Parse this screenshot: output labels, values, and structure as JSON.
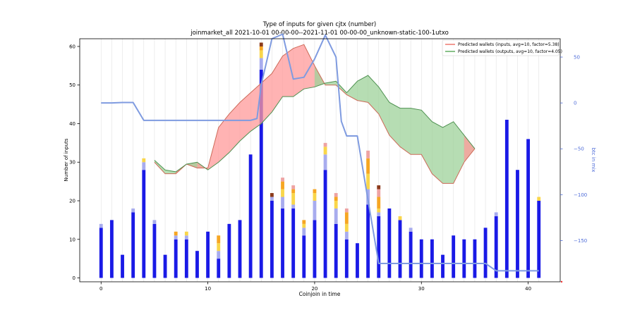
{
  "chart_data": {
    "type": "bar",
    "title": "Type of inputs for given cjtx (number)",
    "subtitle": "joinmarket_all 2021-10-01 00-00-00--2021-11-01 00-00-00_unknown-static-100-1utxo",
    "xlabel": "Coinjoin in time",
    "ylabel": "Number of inputs",
    "y2label": "btc in mix",
    "xlim": [
      -2,
      43
    ],
    "ylim": [
      -1,
      62
    ],
    "y2lim": [
      -195,
      70
    ],
    "x_ticks": [
      0,
      10,
      20,
      30,
      40
    ],
    "y_ticks": [
      0,
      10,
      20,
      30,
      40,
      50,
      60
    ],
    "y2_ticks": [
      50,
      0,
      -50,
      -100,
      -150
    ],
    "y2_tick_labels": [
      "50",
      "0",
      "−50",
      "−100",
      "−150"
    ],
    "grid": "vertical",
    "legend_position": "top-right",
    "legend": [
      {
        "label": "Predicted wallets (inputs, avg=10, factor=5.38)",
        "color": "#e8574b"
      },
      {
        "label": "Predicted wallets (outputs, avg=10, factor=4.05)",
        "color": "#3a9a3a"
      }
    ],
    "colors": {
      "base": "#1a1ae6",
      "lavender": "#a8acee",
      "yellow": "#f9d64a",
      "orange": "#f6a623",
      "pink": "#eea3a3",
      "brown": "#8b3a1a",
      "btc_line": "#7f9be0",
      "inputs_fill": "#ff9a9a",
      "outputs_fill": "#9ed29a",
      "inputs_line": "#cd6a58",
      "outputs_line": "#4e9150",
      "y2_axis": "#4d6bd8"
    },
    "stacks": [
      [
        0,
        [
          13,
          1,
          0,
          0,
          0,
          0
        ]
      ],
      [
        1,
        [
          15,
          0,
          0,
          0,
          0,
          0
        ]
      ],
      [
        2,
        [
          6,
          0,
          0,
          0,
          0,
          0
        ]
      ],
      [
        3,
        [
          17,
          1,
          0,
          0,
          0,
          0
        ]
      ],
      [
        4,
        [
          28,
          2,
          1,
          0,
          0,
          0
        ]
      ],
      [
        5,
        [
          14,
          1,
          0,
          0,
          0,
          0
        ]
      ],
      [
        6,
        [
          6,
          0,
          0,
          0,
          0,
          0
        ]
      ],
      [
        7,
        [
          10,
          1,
          0,
          1,
          0,
          0
        ]
      ],
      [
        8,
        [
          10,
          1,
          1,
          0,
          0,
          0
        ]
      ],
      [
        9,
        [
          7,
          0,
          0,
          0,
          0,
          0
        ]
      ],
      [
        10,
        [
          12,
          0,
          0,
          0,
          0,
          0
        ]
      ],
      [
        11,
        [
          5,
          2,
          2,
          2,
          0,
          0
        ]
      ],
      [
        12,
        [
          14,
          0,
          0,
          0,
          0,
          0
        ]
      ],
      [
        13,
        [
          15,
          0,
          0,
          0,
          0,
          0
        ]
      ],
      [
        14,
        [
          32,
          0,
          0,
          0,
          0,
          0
        ]
      ],
      [
        15,
        [
          54,
          3,
          2,
          1,
          0,
          1
        ]
      ],
      [
        16,
        [
          20,
          1,
          0,
          0,
          0,
          1
        ]
      ],
      [
        17,
        [
          18,
          3,
          2,
          2,
          1,
          0
        ]
      ],
      [
        18,
        [
          18,
          1,
          3,
          1,
          1,
          0
        ]
      ],
      [
        19,
        [
          11,
          2,
          1,
          1,
          0,
          0
        ]
      ],
      [
        20,
        [
          15,
          5,
          2,
          1,
          0,
          0
        ]
      ],
      [
        21,
        [
          28,
          4,
          2,
          0,
          1,
          0
        ]
      ],
      [
        22,
        [
          14,
          4,
          2,
          1,
          1,
          0
        ]
      ],
      [
        23,
        [
          10,
          2,
          2,
          3,
          1,
          0
        ]
      ],
      [
        24,
        [
          9,
          0,
          0,
          0,
          0,
          0
        ]
      ],
      [
        25,
        [
          19,
          4,
          4,
          4,
          2,
          0
        ]
      ],
      [
        26,
        [
          16,
          1,
          1,
          3,
          2,
          1
        ]
      ],
      [
        27,
        [
          18,
          0,
          0,
          0,
          0,
          0
        ]
      ],
      [
        28,
        [
          15,
          0,
          1,
          0,
          0,
          0
        ]
      ],
      [
        29,
        [
          12,
          1,
          0,
          0,
          0,
          0
        ]
      ],
      [
        30,
        [
          10,
          0,
          0,
          0,
          0,
          0
        ]
      ],
      [
        31,
        [
          10,
          0,
          0,
          0,
          0,
          0
        ]
      ],
      [
        32,
        [
          6,
          0,
          0,
          0,
          0,
          0
        ]
      ],
      [
        33,
        [
          11,
          0,
          0,
          0,
          0,
          0
        ]
      ],
      [
        34,
        [
          10,
          0,
          0,
          0,
          0,
          0
        ]
      ],
      [
        35,
        [
          10,
          0,
          0,
          0,
          0,
          0
        ]
      ],
      [
        36,
        [
          13,
          0,
          0,
          0,
          0,
          0
        ]
      ],
      [
        37,
        [
          16,
          1,
          0,
          0,
          0,
          0
        ]
      ],
      [
        38,
        [
          41,
          0,
          0,
          0,
          0,
          0
        ]
      ],
      [
        39,
        [
          28,
          0,
          0,
          0,
          0,
          0
        ]
      ],
      [
        40,
        [
          36,
          0,
          0,
          0,
          0,
          0
        ]
      ],
      [
        41,
        [
          20,
          0,
          1,
          0,
          0,
          0
        ]
      ]
    ],
    "btc_in_mix": [
      [
        0,
        0
      ],
      [
        1,
        0
      ],
      [
        2,
        0.5
      ],
      [
        3,
        0.5
      ],
      [
        4,
        -19
      ],
      [
        5,
        -19
      ],
      [
        6,
        -19
      ],
      [
        7,
        -19
      ],
      [
        8,
        -19
      ],
      [
        9,
        -19
      ],
      [
        10,
        -19
      ],
      [
        11,
        -19
      ],
      [
        12,
        -19
      ],
      [
        13,
        -19
      ],
      [
        14,
        -19
      ],
      [
        14.6,
        -17
      ],
      [
        15,
        20
      ],
      [
        16,
        70
      ],
      [
        17,
        75
      ],
      [
        18,
        26
      ],
      [
        19,
        28
      ],
      [
        20,
        48
      ],
      [
        21,
        74
      ],
      [
        22,
        50
      ],
      [
        22.5,
        -20
      ],
      [
        23,
        -36
      ],
      [
        24,
        -36
      ],
      [
        25,
        -106
      ],
      [
        26,
        -175
      ],
      [
        27,
        -175
      ],
      [
        28,
        -175
      ],
      [
        29,
        -175
      ],
      [
        30,
        -175
      ],
      [
        31,
        -175
      ],
      [
        32,
        -175
      ],
      [
        33,
        -175
      ],
      [
        34,
        -175
      ],
      [
        35,
        -175
      ],
      [
        36,
        -175
      ],
      [
        37,
        -183
      ],
      [
        38,
        -183
      ],
      [
        39,
        -183
      ],
      [
        40,
        -183
      ],
      [
        41,
        -183
      ]
    ],
    "predicted_inputs": [
      [
        5,
        30
      ],
      [
        6,
        27
      ],
      [
        7,
        27
      ],
      [
        8,
        29.5
      ],
      [
        9,
        28.5
      ],
      [
        10,
        28.5
      ],
      [
        11,
        39
      ],
      [
        12,
        42.5
      ],
      [
        13,
        45.5
      ],
      [
        14,
        48
      ],
      [
        15,
        50.5
      ],
      [
        16,
        53
      ],
      [
        17,
        57.5
      ],
      [
        18,
        59.5
      ],
      [
        19,
        60.5
      ],
      [
        20,
        55
      ],
      [
        21,
        50
      ],
      [
        22,
        50
      ],
      [
        23,
        47.5
      ],
      [
        24,
        46
      ],
      [
        25,
        45.5
      ],
      [
        26,
        42.5
      ],
      [
        27,
        37
      ],
      [
        28,
        34
      ],
      [
        29,
        32
      ],
      [
        30,
        32
      ],
      [
        31,
        27
      ],
      [
        32,
        24.5
      ],
      [
        33,
        24.5
      ],
      [
        34,
        30
      ],
      [
        35,
        33.5
      ]
    ],
    "predicted_outputs": [
      [
        5,
        30.5
      ],
      [
        6,
        28
      ],
      [
        7,
        27.5
      ],
      [
        8,
        29.5
      ],
      [
        9,
        30
      ],
      [
        10,
        28
      ],
      [
        11,
        30
      ],
      [
        12,
        32.5
      ],
      [
        13,
        35.5
      ],
      [
        14,
        38
      ],
      [
        15,
        40
      ],
      [
        16,
        43
      ],
      [
        17,
        47
      ],
      [
        18,
        47
      ],
      [
        19,
        49
      ],
      [
        20,
        49.5
      ],
      [
        21,
        50.5
      ],
      [
        22,
        51
      ],
      [
        23,
        48
      ],
      [
        24,
        51
      ],
      [
        25,
        52.5
      ],
      [
        26,
        49.5
      ],
      [
        27,
        45.5
      ],
      [
        28,
        44
      ],
      [
        29,
        44
      ],
      [
        30,
        43.5
      ],
      [
        31,
        40.5
      ],
      [
        32,
        39
      ],
      [
        33,
        40.5
      ],
      [
        34,
        37
      ],
      [
        35,
        33.5
      ]
    ]
  }
}
